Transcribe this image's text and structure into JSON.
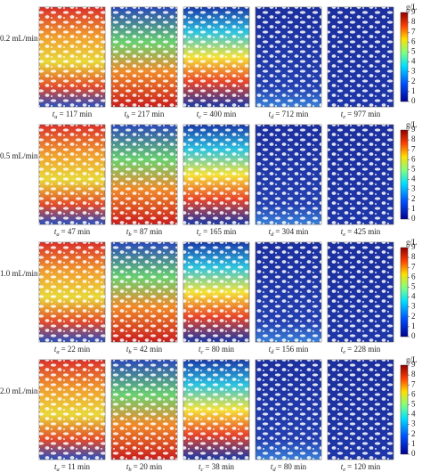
{
  "time_symbol": "t",
  "colorbar": {
    "unit": "g/L",
    "ticks": [
      0,
      1,
      2,
      3,
      4,
      5,
      6,
      7,
      8,
      9
    ]
  },
  "rows": [
    {
      "flow_rate": "0.2 mL/min",
      "panels": [
        {
          "subscript": "a",
          "text": "= 117 min"
        },
        {
          "subscript": "b",
          "text": "= 217 min"
        },
        {
          "subscript": "c",
          "text": "= 400 min"
        },
        {
          "subscript": "d",
          "text": "= 712 min"
        },
        {
          "subscript": "e",
          "text": "= 977 min"
        }
      ]
    },
    {
      "flow_rate": "0.5 mL/min",
      "panels": [
        {
          "subscript": "a",
          "text": "= 47 min"
        },
        {
          "subscript": "b",
          "text": "= 87 min"
        },
        {
          "subscript": "c",
          "text": "= 165 min"
        },
        {
          "subscript": "d",
          "text": "= 304 min"
        },
        {
          "subscript": "e",
          "text": "= 425 min"
        }
      ]
    },
    {
      "flow_rate": "1.0 mL/min",
      "panels": [
        {
          "subscript": "a",
          "text": "= 22 min"
        },
        {
          "subscript": "b",
          "text": "= 42 min"
        },
        {
          "subscript": "c",
          "text": "= 80 min"
        },
        {
          "subscript": "d",
          "text": "= 156 min"
        },
        {
          "subscript": "e",
          "text": "= 228 min"
        }
      ]
    },
    {
      "flow_rate": "2.0 mL/min",
      "panels": [
        {
          "subscript": "a",
          "text": "= 11 min"
        },
        {
          "subscript": "b",
          "text": "= 20 min"
        },
        {
          "subscript": "c",
          "text": "= 38 min"
        },
        {
          "subscript": "d",
          "text": "= 80 min"
        },
        {
          "subscript": "e",
          "text": "= 120 min"
        }
      ]
    }
  ]
}
